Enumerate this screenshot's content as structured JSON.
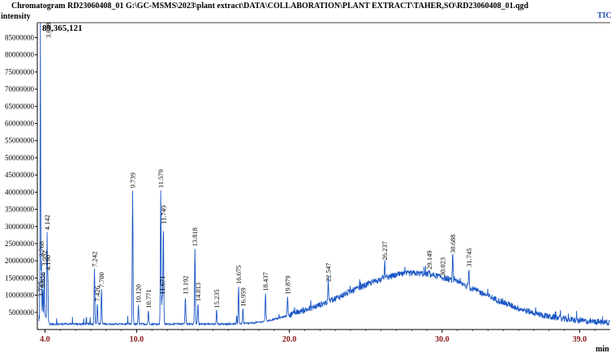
{
  "chart_data": {
    "type": "line",
    "title": "Chromatogram RD23060408_01 G:\\GC-MSMS\\2023\\plant extract\\DATA\\COLLABORATION\\PLANT EXTRACT\\TAHER,SO\\RD23060408_01.qgd",
    "trace_label": "TIC",
    "ylabel": "intensity",
    "xlabel": "min",
    "max_label": "89,365,121",
    "xlim": [
      3.5,
      41.0
    ],
    "ylim": [
      0,
      89365121
    ],
    "x_ticks": [
      4.0,
      10.0,
      20.0,
      30.0,
      39.0
    ],
    "x_tick_labels": [
      "4.0",
      "10.0",
      "20.0",
      "30.0",
      "39.0"
    ],
    "y_ticks": [
      5000000,
      10000000,
      15000000,
      20000000,
      25000000,
      30000000,
      35000000,
      40000000,
      45000000,
      50000000,
      55000000,
      60000000,
      65000000,
      70000000,
      75000000,
      80000000,
      85000000
    ],
    "y_tick_labels": [
      "5000000",
      "10000000",
      "15000000",
      "20000000",
      "25000000",
      "30000000",
      "35000000",
      "40000000",
      "45000000",
      "50000000",
      "55000000",
      "60000000",
      "65000000",
      "70000000",
      "75000000",
      "80000000",
      "85000000"
    ],
    "peaks": [
      {
        "rt": 3.698,
        "label": "3.698",
        "intensity": 89365121
      },
      {
        "rt": 3.725,
        "label": "3.725",
        "intensity": 8800000
      },
      {
        "rt": 3.856,
        "label": "3.856",
        "intensity": 11500000
      },
      {
        "rt": 3.952,
        "label": "3.952",
        "intensity": 17800000
      },
      {
        "rt": 3.768,
        "label": "3.768",
        "intensity": 20500000
      },
      {
        "rt": 4.142,
        "label": "4.142",
        "intensity": 28200000
      },
      {
        "rt": 4.19,
        "label": "4.190",
        "intensity": 16500000
      },
      {
        "rt": 7.242,
        "label": "7.242",
        "intensity": 17500000
      },
      {
        "rt": 7.426,
        "label": "7.426",
        "intensity": 7500000
      },
      {
        "rt": 7.7,
        "label": "7.700",
        "intensity": 11500000
      },
      {
        "rt": 9.739,
        "label": "9.739",
        "intensity": 40500000
      },
      {
        "rt": 10.12,
        "label": "10.120",
        "intensity": 7000000
      },
      {
        "rt": 10.771,
        "label": "10.771",
        "intensity": 5500000
      },
      {
        "rt": 11.579,
        "label": "11.579",
        "intensity": 40500000
      },
      {
        "rt": 11.671,
        "label": "11.671",
        "intensity": 9500000
      },
      {
        "rt": 11.749,
        "label": "11.749",
        "intensity": 30000000
      },
      {
        "rt": 13.192,
        "label": "13.192",
        "intensity": 9500000
      },
      {
        "rt": 13.818,
        "label": "13.818",
        "intensity": 23500000
      },
      {
        "rt": 14.013,
        "label": "14.013",
        "intensity": 7500000
      },
      {
        "rt": 15.235,
        "label": "15.235",
        "intensity": 5500000
      },
      {
        "rt": 16.675,
        "label": "16.675",
        "intensity": 12500000
      },
      {
        "rt": 16.959,
        "label": "16.959",
        "intensity": 6000000
      },
      {
        "rt": 18.437,
        "label": "18.437",
        "intensity": 10500000
      },
      {
        "rt": 19.879,
        "label": "19.879",
        "intensity": 9500000
      },
      {
        "rt": 22.547,
        "label": "22.547",
        "intensity": 13200000
      },
      {
        "rt": 26.237,
        "label": "26.237",
        "intensity": 19500000
      },
      {
        "rt": 29.149,
        "label": "29.149",
        "intensity": 16800000
      },
      {
        "rt": 30.023,
        "label": "30.023",
        "intensity": 14800000
      },
      {
        "rt": 30.688,
        "label": "30.688",
        "intensity": 21500000
      },
      {
        "rt": 31.745,
        "label": "31.745",
        "intensity": 17500000
      }
    ],
    "grid": false,
    "line_color": "#1a56c4",
    "axis_tick_color": "#8b1a1a"
  }
}
